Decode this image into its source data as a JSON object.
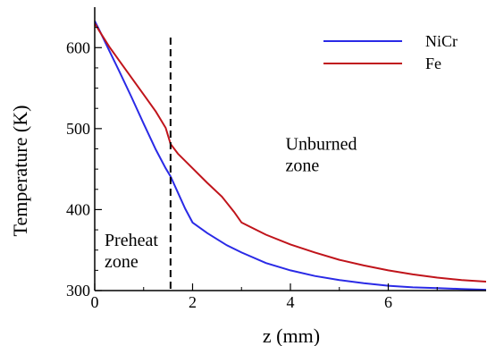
{
  "chart_data": {
    "type": "line",
    "title": "",
    "xlabel": "z (mm)",
    "ylabel": "Temperature (K)",
    "xlim": [
      0,
      8
    ],
    "ylim": [
      300,
      650
    ],
    "xticks": [
      0,
      2,
      4,
      6
    ],
    "xtick_labels": [
      "0",
      "2",
      "4",
      "6"
    ],
    "yticks": [
      300,
      400,
      500,
      600
    ],
    "ytick_labels": [
      "300",
      "400",
      "500",
      "600"
    ],
    "grid": false,
    "legend_position": "top-right",
    "series": [
      {
        "name": "NiCr",
        "color": "#2a2ae6",
        "x": [
          0,
          0.1,
          0.3,
          0.5,
          0.75,
          1.0,
          1.25,
          1.45,
          1.55,
          1.7,
          1.85,
          2.0,
          2.3,
          2.7,
          3.0,
          3.5,
          4.0,
          4.5,
          5.0,
          5.5,
          6.0,
          6.5,
          7.0,
          7.5,
          8.0
        ],
        "y": [
          633,
          621,
          596,
          571,
          539,
          506,
          474,
          451,
          441,
          421,
          401,
          384,
          371,
          356,
          347,
          334,
          325,
          318,
          313,
          309,
          306,
          304,
          303,
          302,
          301
        ]
      },
      {
        "name": "Fe",
        "color": "#c0141b",
        "x": [
          0,
          0.1,
          0.3,
          0.5,
          0.75,
          1.0,
          1.25,
          1.45,
          1.55,
          1.7,
          2.0,
          2.3,
          2.6,
          2.85,
          3.0,
          3.5,
          4.0,
          4.5,
          5.0,
          5.5,
          6.0,
          6.5,
          7.0,
          7.5,
          8.0
        ],
        "y": [
          630,
          620,
          601,
          584,
          563,
          542,
          521,
          501,
          481,
          469,
          451,
          433,
          416,
          397,
          384,
          369,
          357,
          347,
          338,
          331,
          325,
          320,
          316,
          313,
          311
        ]
      }
    ],
    "vline": {
      "x": 1.55,
      "style": "dashed"
    },
    "annotations": [
      {
        "lines": [
          "Unburned",
          "zone"
        ],
        "x": 3.9,
        "y": 474
      },
      {
        "lines": [
          "Preheat",
          "zone"
        ],
        "x": 0.2,
        "y": 355
      }
    ]
  }
}
